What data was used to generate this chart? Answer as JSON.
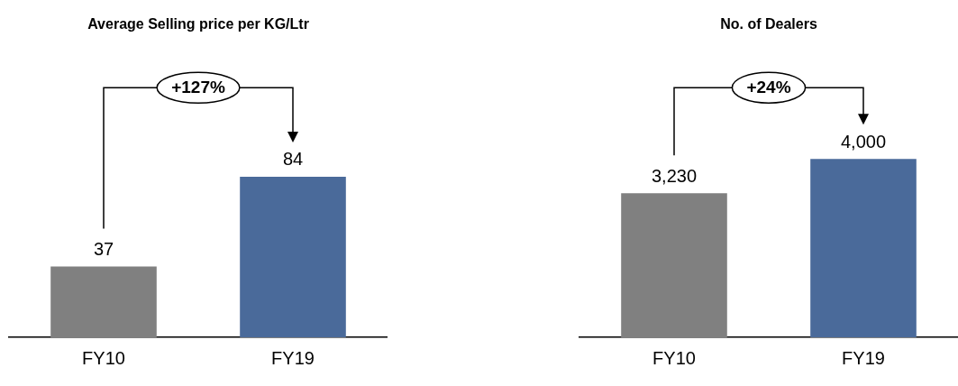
{
  "chart_data": [
    {
      "type": "bar",
      "title": "Average Selling price per KG/Ltr",
      "categories": [
        "FY10",
        "FY19"
      ],
      "values": [
        37,
        84
      ],
      "colors": [
        "#808080",
        "#4a6a9a"
      ],
      "value_labels": [
        "37",
        "84"
      ],
      "annotations": [
        "+127%"
      ],
      "legend": false,
      "grid": false
    },
    {
      "type": "bar",
      "title": "No. of Dealers",
      "categories": [
        "FY10",
        "FY19"
      ],
      "values": [
        3230,
        4000
      ],
      "colors": [
        "#808080",
        "#4a6a9a"
      ],
      "value_labels": [
        "3,230",
        "4,000"
      ],
      "annotations": [
        "+24%"
      ],
      "legend": false,
      "grid": false
    }
  ]
}
